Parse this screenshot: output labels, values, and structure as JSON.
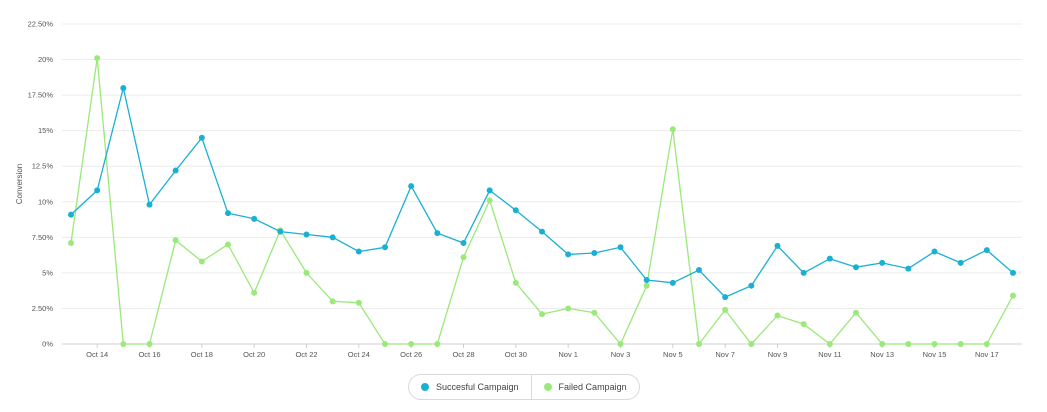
{
  "chart_data": {
    "type": "line",
    "ylabel": "Conversion",
    "ylim": [
      0,
      22.5
    ],
    "y_ticks": [
      "0%",
      "2.50%",
      "5%",
      "7.50%",
      "10%",
      "12.5%",
      "15%",
      "17.50%",
      "20%",
      "22.50%"
    ],
    "x": [
      "Oct 13",
      "Oct 14",
      "Oct 15",
      "Oct 16",
      "Oct 17",
      "Oct 18",
      "Oct 19",
      "Oct 20",
      "Oct 21",
      "Oct 22",
      "Oct 23",
      "Oct 24",
      "Oct 25",
      "Oct 26",
      "Oct 27",
      "Oct 28",
      "Oct 29",
      "Oct 30",
      "Oct 31",
      "Nov 1",
      "Nov 2",
      "Nov 3",
      "Nov 4",
      "Nov 5",
      "Nov 6",
      "Nov 7",
      "Nov 8",
      "Nov 9",
      "Nov 10",
      "Nov 11",
      "Nov 12",
      "Nov 13",
      "Nov 14",
      "Nov 15",
      "Nov 16",
      "Nov 17",
      "Nov 18"
    ],
    "x_tick_labels": [
      "Oct 14",
      "Oct 16",
      "Oct 18",
      "Oct 20",
      "Oct 22",
      "Oct 24",
      "Oct 26",
      "Oct 28",
      "Oct 30",
      "Nov 1",
      "Nov 3",
      "Nov 5",
      "Nov 7",
      "Nov 9",
      "Nov 11",
      "Nov 13",
      "Nov 15",
      "Nov 17"
    ],
    "series": [
      {
        "name": "Succesful Campaign",
        "color": "#1ab0d3",
        "values": [
          9.1,
          10.8,
          18.0,
          9.8,
          12.2,
          14.5,
          9.2,
          8.8,
          7.9,
          7.7,
          7.5,
          6.5,
          6.8,
          11.1,
          7.8,
          7.1,
          10.8,
          9.4,
          7.9,
          6.3,
          6.4,
          6.8,
          4.5,
          4.3,
          5.2,
          3.3,
          4.1,
          6.9,
          5.0,
          6.0,
          5.4,
          5.7,
          5.3,
          6.5,
          5.7,
          6.6,
          5.0
        ]
      },
      {
        "name": "Failed Campaign",
        "color": "#9be87b",
        "values": [
          7.1,
          20.1,
          0,
          0,
          7.3,
          5.8,
          7.0,
          3.6,
          8.0,
          5.0,
          3.0,
          2.9,
          0,
          0,
          0,
          6.1,
          10.1,
          4.3,
          2.1,
          2.5,
          2.2,
          0,
          4.1,
          15.1,
          0,
          2.4,
          0,
          2.0,
          1.4,
          0,
          2.2,
          0,
          0,
          0,
          0,
          0,
          3.4
        ]
      }
    ]
  }
}
